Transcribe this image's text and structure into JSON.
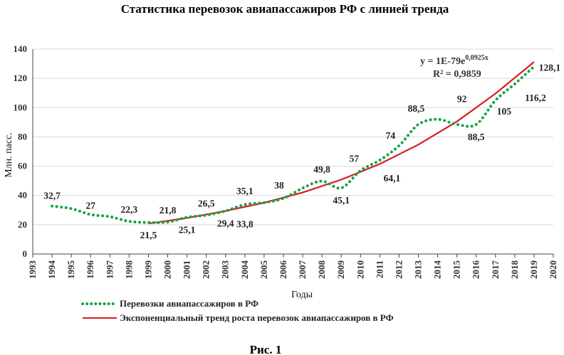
{
  "chart_data": {
    "type": "line",
    "title": "Статистика перевозок авиапассажиров РФ с линией тренда",
    "xlabel": "Годы",
    "ylabel": "Млн. пасс.",
    "x_ticks": [
      1993,
      1994,
      1995,
      1996,
      1997,
      1998,
      1999,
      2000,
      2001,
      2002,
      2003,
      2004,
      2005,
      2006,
      2007,
      2008,
      2009,
      2010,
      2011,
      2012,
      2013,
      2014,
      2015,
      2016,
      2017,
      2018,
      2019,
      2020
    ],
    "xlim": [
      1993,
      2020
    ],
    "ylim": [
      0,
      140
    ],
    "y_ticks": [
      0,
      20,
      40,
      60,
      80,
      100,
      120,
      140
    ],
    "grid": "horizontal",
    "legend_position": "bottom",
    "series": [
      {
        "name": "Перевозки авиапассажиров в РФ",
        "style": "dotted",
        "color": "#19a34a",
        "x": [
          1994,
          1995,
          1996,
          1997,
          1998,
          1999,
          2000,
          2001,
          2002,
          2003,
          2004,
          2005,
          2006,
          2007,
          2008,
          2009,
          2010,
          2011,
          2012,
          2013,
          2014,
          2015,
          2016,
          2017,
          2018,
          2019
        ],
        "y": [
          32.7,
          31,
          27,
          25.5,
          22.3,
          21.5,
          21.8,
          25.1,
          26.5,
          29.4,
          33.8,
          35.1,
          38,
          45,
          49.8,
          45.1,
          57,
          64.1,
          74,
          88.5,
          92,
          88.5,
          88.5,
          105,
          116.2,
          128.1
        ]
      },
      {
        "name": "Экспоненциальный тренд роста перевозок авиапассажиров в РФ",
        "style": "solid",
        "color": "#d81e1e",
        "x_range": [
          1999,
          2019
        ],
        "trend_points": [
          [
            1999,
            20.8
          ],
          [
            2001,
            24.6
          ],
          [
            2003,
            29.4
          ],
          [
            2005,
            35.0
          ],
          [
            2007,
            42.0
          ],
          [
            2009,
            50.8
          ],
          [
            2011,
            61.5
          ],
          [
            2013,
            74.7
          ],
          [
            2015,
            90.5
          ],
          [
            2017,
            109.6
          ],
          [
            2019,
            131.2
          ]
        ]
      }
    ],
    "data_labels": [
      {
        "text": "32,7",
        "x": 1994,
        "y": 32.7
      },
      {
        "text": "27",
        "x": 1996,
        "y": 27
      },
      {
        "text": "22,3",
        "x": 1998,
        "y": 22.3
      },
      {
        "text": "21,5",
        "x": 1999,
        "y": 21.5
      },
      {
        "text": "21,8",
        "x": 2000,
        "y": 21.8
      },
      {
        "text": "25,1",
        "x": 2001,
        "y": 25.1
      },
      {
        "text": "26,5",
        "x": 2002,
        "y": 26.5
      },
      {
        "text": "29,4",
        "x": 2003,
        "y": 29.4
      },
      {
        "text": "35,1",
        "x": 2004,
        "y": 35.1
      },
      {
        "text": "33,8",
        "x": 2004,
        "y": 33.8
      },
      {
        "text": "38",
        "x": 2006,
        "y": 38
      },
      {
        "text": "49,8",
        "x": 2008,
        "y": 49.8
      },
      {
        "text": "45,1",
        "x": 2009,
        "y": 45.1
      },
      {
        "text": "57",
        "x": 2010,
        "y": 57
      },
      {
        "text": "64,1",
        "x": 2012,
        "y": 64.1
      },
      {
        "text": "74",
        "x": 2012,
        "y": 74
      },
      {
        "text": "88,5",
        "x": 2013,
        "y": 88.5
      },
      {
        "text": "92",
        "x": 2015,
        "y": 92
      },
      {
        "text": "88,5",
        "x": 2016,
        "y": 88.5
      },
      {
        "text": "105",
        "x": 2018,
        "y": 105
      },
      {
        "text": "116,2",
        "x": 2019,
        "y": 116.2
      },
      {
        "text": "128,1",
        "x": 2019,
        "y": 128.1
      }
    ],
    "equation": {
      "prefix": "y = 1E-79e",
      "exponent": "0,0925x"
    },
    "r_squared": "R² = 0,9859"
  },
  "caption": "Рис. 1"
}
